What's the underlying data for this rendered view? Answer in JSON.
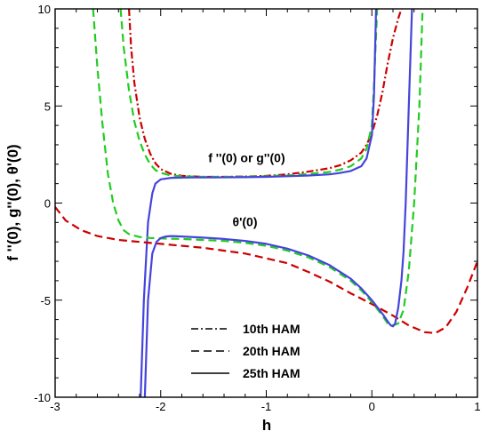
{
  "chart_data": {
    "type": "line",
    "xlabel": "h",
    "ylabel": "f ''(0), g''(0), θ'(0)",
    "xlim": [
      -3,
      1
    ],
    "ylim": [
      -10,
      10
    ],
    "x_ticks": [
      -3,
      -2,
      -1,
      0,
      1
    ],
    "y_ticks": [
      -10,
      -5,
      0,
      5,
      10
    ],
    "grid": false,
    "legend_position": "bottom-center",
    "legend": [
      {
        "label": "10th HAM",
        "dash": "dashdot"
      },
      {
        "label": "20th HAM",
        "dash": "dashed"
      },
      {
        "label": "25th HAM",
        "dash": "solid"
      }
    ],
    "annotations": [
      {
        "text": "f ''(0) or g''(0)",
        "x": -1.55,
        "y": 2.1
      },
      {
        "text": "θ'(0)",
        "x": -1.32,
        "y": -1.2
      }
    ],
    "series": [
      {
        "order": "10th",
        "quantity": "f''(0)",
        "color": "#cc0000",
        "dash": "dashdot",
        "x": [
          -2.3,
          -2.28,
          -2.25,
          -2.2,
          -2.15,
          -2.1,
          -2.05,
          -2.0,
          -1.9,
          -1.8,
          -1.6,
          -1.4,
          -1.2,
          -1.0,
          -0.8,
          -0.6,
          -0.4,
          -0.3,
          -0.2,
          -0.1,
          -0.05,
          0.0,
          0.05,
          0.1,
          0.15,
          0.2,
          0.25,
          0.28
        ],
        "y": [
          10,
          8.0,
          6.2,
          4.4,
          3.3,
          2.55,
          2.05,
          1.75,
          1.5,
          1.4,
          1.35,
          1.35,
          1.37,
          1.4,
          1.48,
          1.62,
          1.8,
          1.95,
          2.2,
          2.6,
          3.0,
          3.6,
          4.5,
          5.7,
          7.2,
          8.5,
          9.5,
          10
        ]
      },
      {
        "order": "20th",
        "quantity": "f''(0)",
        "color": "#22cc22",
        "dash": "dashed",
        "x": [
          -2.38,
          -2.35,
          -2.3,
          -2.25,
          -2.2,
          -2.15,
          -2.1,
          -2.05,
          -2.0,
          -1.9,
          -1.8,
          -1.6,
          -1.4,
          -1.2,
          -1.0,
          -0.8,
          -0.6,
          -0.4,
          -0.3,
          -0.2,
          -0.1,
          -0.05,
          0.0,
          0.02,
          0.05
        ],
        "y": [
          10,
          8.0,
          5.8,
          4.2,
          3.2,
          2.5,
          2.0,
          1.7,
          1.55,
          1.42,
          1.38,
          1.35,
          1.35,
          1.36,
          1.38,
          1.42,
          1.5,
          1.6,
          1.72,
          1.9,
          2.3,
          2.8,
          4.0,
          6.0,
          10
        ]
      },
      {
        "order": "25th",
        "quantity": "f''(0)",
        "color": "#4444dd",
        "dash": "solid",
        "x": [
          -2.19,
          -2.16,
          -2.12,
          -2.08,
          -2.05,
          -2.0,
          -1.9,
          -1.7,
          -1.5,
          -1.2,
          -1.0,
          -0.8,
          -0.6,
          -0.4,
          -0.3,
          -0.2,
          -0.1,
          -0.05,
          0.0,
          0.02,
          0.04
        ],
        "y": [
          -10,
          -5.0,
          -1.0,
          0.5,
          1.0,
          1.22,
          1.3,
          1.32,
          1.32,
          1.33,
          1.35,
          1.38,
          1.42,
          1.48,
          1.55,
          1.65,
          1.9,
          2.3,
          3.5,
          5.5,
          10
        ]
      },
      {
        "order": "10th",
        "quantity": "θ'(0)",
        "color": "#cc0000",
        "dash": "dashed",
        "x": [
          -3.0,
          -2.9,
          -2.75,
          -2.6,
          -2.4,
          -2.2,
          -2.0,
          -1.6,
          -1.2,
          -0.8,
          -0.6,
          -0.4,
          -0.2,
          0.0,
          0.2,
          0.35,
          0.5,
          0.6,
          0.7,
          0.8,
          0.9,
          1.0
        ],
        "y": [
          -0.2,
          -0.9,
          -1.4,
          -1.7,
          -1.9,
          -2.0,
          -2.1,
          -2.3,
          -2.6,
          -3.1,
          -3.55,
          -4.05,
          -4.65,
          -5.2,
          -5.8,
          -6.3,
          -6.65,
          -6.7,
          -6.4,
          -5.6,
          -4.4,
          -3.0
        ]
      },
      {
        "order": "20th",
        "quantity": "θ'(0)",
        "color": "#22cc22",
        "dash": "dashed",
        "x": [
          -2.64,
          -2.6,
          -2.55,
          -2.5,
          -2.45,
          -2.4,
          -2.35,
          -2.3,
          -2.2,
          -2.1,
          -2.0,
          -1.8,
          -1.6,
          -1.4,
          -1.2,
          -1.0,
          -0.8,
          -0.6,
          -0.4,
          -0.2,
          -0.1,
          0.0,
          0.1,
          0.15,
          0.2,
          0.25,
          0.3,
          0.35,
          0.4,
          0.45,
          0.48
        ],
        "y": [
          10,
          7.0,
          4.0,
          1.5,
          0.0,
          -0.9,
          -1.4,
          -1.6,
          -1.75,
          -1.8,
          -1.82,
          -1.85,
          -1.9,
          -1.95,
          -2.05,
          -2.2,
          -2.45,
          -2.8,
          -3.3,
          -4.0,
          -4.5,
          -5.1,
          -5.8,
          -6.2,
          -6.3,
          -6.2,
          -5.5,
          -3.5,
          0.0,
          5.0,
          10
        ]
      },
      {
        "order": "25th",
        "quantity": "θ'(0)",
        "color": "#4444dd",
        "dash": "solid",
        "x": [
          -2.15,
          -2.12,
          -2.08,
          -2.04,
          -2.0,
          -1.95,
          -1.9,
          -1.8,
          -1.6,
          -1.4,
          -1.2,
          -1.0,
          -0.8,
          -0.6,
          -0.4,
          -0.2,
          -0.1,
          0.0,
          0.1,
          0.15,
          0.18,
          0.2,
          0.22,
          0.25,
          0.28,
          0.3,
          0.32,
          0.35,
          0.38
        ],
        "y": [
          -10,
          -5.0,
          -2.6,
          -2.0,
          -1.8,
          -1.72,
          -1.7,
          -1.72,
          -1.78,
          -1.85,
          -1.95,
          -2.1,
          -2.35,
          -2.7,
          -3.2,
          -3.9,
          -4.4,
          -5.0,
          -5.7,
          -6.1,
          -6.3,
          -6.35,
          -6.2,
          -5.4,
          -4.0,
          -2.5,
          0.0,
          5.0,
          10
        ]
      }
    ]
  }
}
